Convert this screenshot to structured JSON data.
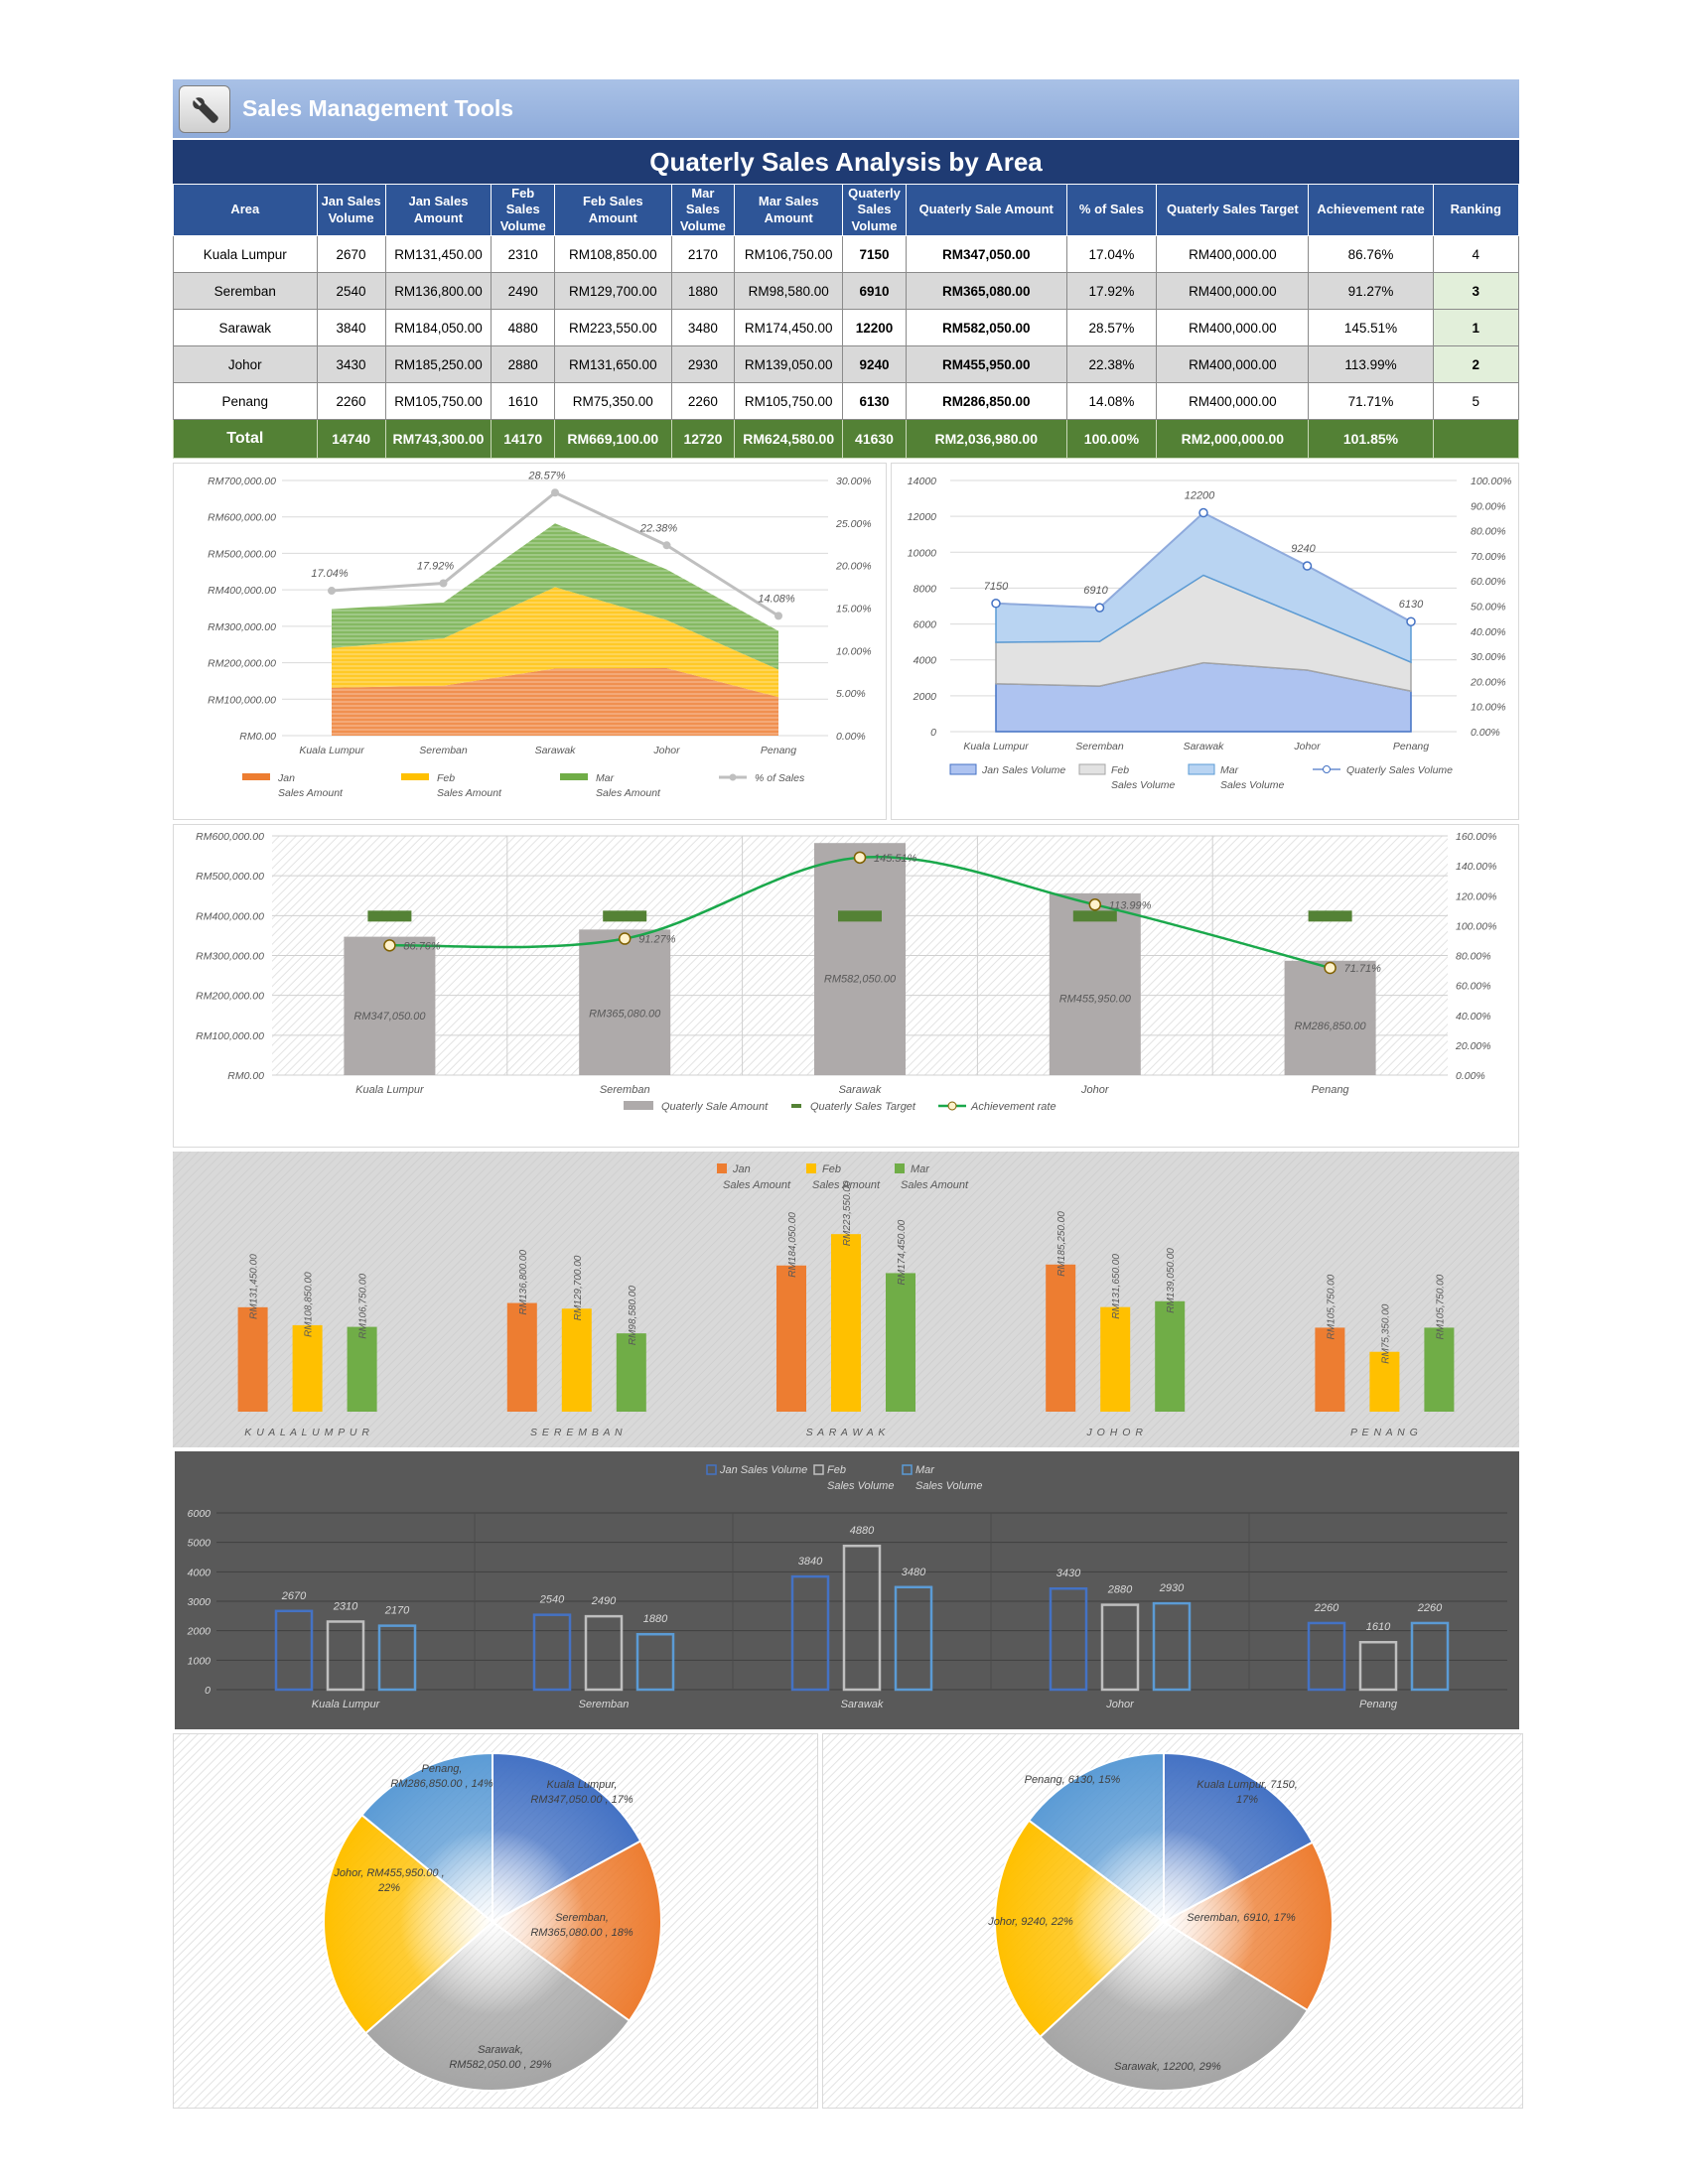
{
  "header": {
    "app_title": "Sales Management Tools",
    "report_title": "Quaterly Sales Analysis by Area",
    "tool_icon": "wrench-icon"
  },
  "table": {
    "columns": [
      "Area",
      "Jan Sales Volume",
      "Jan Sales Amount",
      "Feb Sales Volume",
      "Feb Sales Amount",
      "Mar Sales Volume",
      "Mar Sales Amount",
      "Quaterly Sales Volume",
      "Quaterly Sale Amount",
      "% of Sales",
      "Quaterly Sales Target",
      "Achievement rate",
      "Ranking"
    ],
    "rows": [
      {
        "area": "Kuala Lumpur",
        "jan_vol": "2670",
        "jan_amt": "RM131,450.00",
        "feb_vol": "2310",
        "feb_amt": "RM108,850.00",
        "mar_vol": "2170",
        "mar_amt": "RM106,750.00",
        "q_vol": "7150",
        "q_amt": "RM347,050.00",
        "pct": "17.04%",
        "target": "RM400,000.00",
        "rate": "86.76%",
        "rank": "4"
      },
      {
        "area": "Seremban",
        "jan_vol": "2540",
        "jan_amt": "RM136,800.00",
        "feb_vol": "2490",
        "feb_amt": "RM129,700.00",
        "mar_vol": "1880",
        "mar_amt": "RM98,580.00",
        "q_vol": "6910",
        "q_amt": "RM365,080.00",
        "pct": "17.92%",
        "target": "RM400,000.00",
        "rate": "91.27%",
        "rank": "3"
      },
      {
        "area": "Sarawak",
        "jan_vol": "3840",
        "jan_amt": "RM184,050.00",
        "feb_vol": "4880",
        "feb_amt": "RM223,550.00",
        "mar_vol": "3480",
        "mar_amt": "RM174,450.00",
        "q_vol": "12200",
        "q_amt": "RM582,050.00",
        "pct": "28.57%",
        "target": "RM400,000.00",
        "rate": "145.51%",
        "rank": "1"
      },
      {
        "area": "Johor",
        "jan_vol": "3430",
        "jan_amt": "RM185,250.00",
        "feb_vol": "2880",
        "feb_amt": "RM131,650.00",
        "mar_vol": "2930",
        "mar_amt": "RM139,050.00",
        "q_vol": "9240",
        "q_amt": "RM455,950.00",
        "pct": "22.38%",
        "target": "RM400,000.00",
        "rate": "113.99%",
        "rank": "2"
      },
      {
        "area": "Penang",
        "jan_vol": "2260",
        "jan_amt": "RM105,750.00",
        "feb_vol": "1610",
        "feb_amt": "RM75,350.00",
        "mar_vol": "2260",
        "mar_amt": "RM105,750.00",
        "q_vol": "6130",
        "q_amt": "RM286,850.00",
        "pct": "14.08%",
        "target": "RM400,000.00",
        "rate": "71.71%",
        "rank": "5"
      }
    ],
    "total": {
      "label": "Total",
      "jan_vol": "14740",
      "jan_amt": "RM743,300.00",
      "feb_vol": "14170",
      "feb_amt": "RM669,100.00",
      "mar_vol": "12720",
      "mar_amt": "RM624,580.00",
      "q_vol": "41630",
      "q_amt": "RM2,036,980.00",
      "pct": "100.00%",
      "target": "RM2,000,000.00",
      "rate": "101.85%"
    }
  },
  "chart_data": [
    {
      "id": "amount-area",
      "type": "area",
      "categories": [
        "Kuala Lumpur",
        "Seremban",
        "Sarawak",
        "Johor",
        "Penang"
      ],
      "series": [
        {
          "name": "Jan Sales Amount",
          "legend": [
            "Jan",
            "Sales Amount"
          ],
          "values": [
            131450,
            136800,
            184050,
            185250,
            105750
          ],
          "color": "#ed7d31"
        },
        {
          "name": "Feb Sales Amount",
          "legend": [
            "Feb",
            "Sales Amount"
          ],
          "values": [
            108850,
            129700,
            223550,
            131650,
            75350
          ],
          "color": "#ffc000"
        },
        {
          "name": "Mar Sales Amount",
          "legend": [
            "Mar",
            "Sales Amount"
          ],
          "values": [
            106750,
            98580,
            174450,
            139050,
            105750
          ],
          "color": "#70ad47"
        }
      ],
      "line": {
        "name": "% of Sales",
        "legend": [
          "% of Sales"
        ],
        "values": [
          17.04,
          17.92,
          28.57,
          22.38,
          14.08
        ],
        "labels": [
          "17.04%",
          "17.92%",
          "28.57%",
          "22.38%",
          "14.08%"
        ],
        "color": "#bfbfbf"
      },
      "y_ticks": [
        "RM0.00",
        "RM100,000.00",
        "RM200,000.00",
        "RM300,000.00",
        "RM400,000.00",
        "RM500,000.00",
        "RM600,000.00",
        "RM700,000.00"
      ],
      "ylim": [
        0,
        700000
      ],
      "y2_ticks": [
        "0.00%",
        "5.00%",
        "10.00%",
        "15.00%",
        "20.00%",
        "25.00%",
        "30.00%"
      ],
      "y2lim": [
        0,
        30
      ]
    },
    {
      "id": "volume-area",
      "type": "area",
      "categories": [
        "Kuala Lumpur",
        "Seremban",
        "Sarawak",
        "Johor",
        "Penang"
      ],
      "series": [
        {
          "name": "Jan Sales Volume",
          "legend": [
            "Jan Sales Volume"
          ],
          "values": [
            2670,
            2540,
            3840,
            3430,
            2260
          ],
          "color": "#4472c4"
        },
        {
          "name": "Feb Sales Volume",
          "legend": [
            "Feb",
            "Sales Volume"
          ],
          "values": [
            2310,
            2490,
            4880,
            2880,
            1610
          ],
          "color": "#a5a5a5"
        },
        {
          "name": "Mar Sales Volume",
          "legend": [
            "Mar",
            "Sales Volume"
          ],
          "values": [
            2170,
            1880,
            3480,
            2930,
            2260
          ],
          "color": "#5b9bd5"
        }
      ],
      "line": {
        "name": "Quaterly Sales Volume",
        "legend": [
          "Quaterly Sales Volume"
        ],
        "values": [
          7150,
          6910,
          12200,
          9240,
          6130
        ],
        "labels": [
          "7150",
          "6910",
          "12200",
          "9240",
          "6130"
        ],
        "color": "#8faadc"
      },
      "y_ticks": [
        "0",
        "2000",
        "4000",
        "6000",
        "8000",
        "10000",
        "12000",
        "14000"
      ],
      "ylim": [
        0,
        14000
      ],
      "y2_ticks": [
        "0.00%",
        "10.00%",
        "20.00%",
        "30.00%",
        "40.00%",
        "50.00%",
        "60.00%",
        "70.00%",
        "80.00%",
        "90.00%",
        "100.00%"
      ],
      "y2lim": [
        0,
        100
      ]
    },
    {
      "id": "achievement",
      "type": "bar",
      "categories": [
        "Kuala Lumpur",
        "Seremban",
        "Sarawak",
        "Johor",
        "Penang"
      ],
      "bars": {
        "name": "Quaterly Sale Amount",
        "values": [
          347050,
          365080,
          582050,
          455950,
          286850
        ],
        "labels": [
          "RM347,050.00",
          "RM365,080.00",
          "RM582,050.00",
          "RM455,950.00",
          "RM286,850.00"
        ],
        "color": "#aeaaaa"
      },
      "target": {
        "name": "Quaterly Sales Target",
        "values": [
          400000,
          400000,
          400000,
          400000,
          400000
        ],
        "color": "#548235"
      },
      "rate": {
        "name": "Achievement rate",
        "values": [
          86.76,
          91.27,
          145.51,
          113.99,
          71.71
        ],
        "labels": [
          "86.76%",
          "91.27%",
          "145.51%",
          "113.99%",
          "71.71%"
        ],
        "color": "#1aa84b"
      },
      "y_ticks": [
        "RM0.00",
        "RM100,000.00",
        "RM200,000.00",
        "RM300,000.00",
        "RM400,000.00",
        "RM500,000.00",
        "RM600,000.00"
      ],
      "ylim": [
        0,
        600000
      ],
      "y2_ticks": [
        "0.00%",
        "20.00%",
        "40.00%",
        "60.00%",
        "80.00%",
        "100.00%",
        "120.00%",
        "140.00%",
        "160.00%"
      ],
      "y2lim": [
        0,
        160
      ]
    },
    {
      "id": "monthly-amount",
      "type": "bar",
      "categories": [
        "KUALA LUMPUR",
        "SEREMBAN",
        "SARAWAK",
        "JOHOR",
        "PENANG"
      ],
      "series": [
        {
          "name": "Jan Sales Amount",
          "legend": [
            "Jan",
            "Sales Amount"
          ],
          "values": [
            131450,
            136800,
            184050,
            185250,
            105750
          ],
          "labels": [
            "RM131,450.00",
            "RM136,800.00",
            "RM184,050.00",
            "RM185,250.00",
            "RM105,750.00"
          ],
          "color": "#ed7d31"
        },
        {
          "name": "Feb Sales Amount",
          "legend": [
            "Feb",
            "Sales Amount"
          ],
          "values": [
            108850,
            129700,
            223550,
            131650,
            75350
          ],
          "labels": [
            "RM108,850.00",
            "RM129,700.00",
            "RM223,550.00",
            "RM131,650.00",
            "RM75,350.00"
          ],
          "color": "#ffc000"
        },
        {
          "name": "Mar Sales Amount",
          "legend": [
            "Mar",
            "Sales Amount"
          ],
          "values": [
            106750,
            98580,
            174450,
            139050,
            105750
          ],
          "labels": [
            "RM106,750.00",
            "RM98,580.00",
            "RM174,450.00",
            "RM139,050.00",
            "RM105,750.00"
          ],
          "color": "#70ad47"
        }
      ],
      "ylim": [
        0,
        240000
      ]
    },
    {
      "id": "monthly-volume",
      "type": "bar",
      "categories": [
        "Kuala Lumpur",
        "Seremban",
        "Sarawak",
        "Johor",
        "Penang"
      ],
      "series": [
        {
          "name": "Jan Sales Volume",
          "legend": [
            "Jan Sales Volume"
          ],
          "values": [
            2670,
            2540,
            3840,
            3430,
            2260
          ],
          "color": "#4472c4"
        },
        {
          "name": "Feb Sales Volume",
          "legend": [
            "Feb",
            "Sales Volume"
          ],
          "values": [
            2310,
            2490,
            4880,
            2880,
            1610
          ],
          "color": "#bfbfbf"
        },
        {
          "name": "Mar Sales Volume",
          "legend": [
            "Mar",
            "Sales Volume"
          ],
          "values": [
            2170,
            1880,
            3480,
            2930,
            2260
          ],
          "color": "#5b9bd5"
        }
      ],
      "y_ticks": [
        "0",
        "1000",
        "2000",
        "3000",
        "4000",
        "5000",
        "6000"
      ],
      "ylim": [
        0,
        6000
      ]
    },
    {
      "id": "amount-pie",
      "type": "pie",
      "slices": [
        {
          "name": "Kuala Lumpur",
          "value": 347050,
          "label": [
            "Kuala Lumpur,",
            "RM347,050.00 , 17%"
          ],
          "color": "#4472c4"
        },
        {
          "name": "Seremban",
          "value": 365080,
          "label": [
            "Seremban,",
            "RM365,080.00 , 18%"
          ],
          "color": "#ed7d31"
        },
        {
          "name": "Sarawak",
          "value": 582050,
          "label": [
            "Sarawak,",
            "RM582,050.00 , 29%"
          ],
          "color": "#a5a5a5"
        },
        {
          "name": "Johor",
          "value": 455950,
          "label": [
            "Johor, RM455,950.00 ,",
            "22%"
          ],
          "color": "#ffc000"
        },
        {
          "name": "Penang",
          "value": 286850,
          "label": [
            "Penang,",
            "RM286,850.00 , 14%"
          ],
          "color": "#5b9bd5"
        }
      ]
    },
    {
      "id": "volume-pie",
      "type": "pie",
      "slices": [
        {
          "name": "Kuala Lumpur",
          "value": 7150,
          "label": [
            "Kuala Lumpur, 7150,",
            "17%"
          ],
          "color": "#4472c4"
        },
        {
          "name": "Seremban",
          "value": 6910,
          "label": [
            "Seremban, 6910, 17%"
          ],
          "color": "#ed7d31"
        },
        {
          "name": "Sarawak",
          "value": 12200,
          "label": [
            "Sarawak, 12200, 29%"
          ],
          "color": "#a5a5a5"
        },
        {
          "name": "Johor",
          "value": 9240,
          "label": [
            "Johor, 9240, 22%"
          ],
          "color": "#ffc000"
        },
        {
          "name": "Penang",
          "value": 6130,
          "label": [
            "Penang, 6130, 15%"
          ],
          "color": "#5b9bd5"
        }
      ]
    }
  ]
}
